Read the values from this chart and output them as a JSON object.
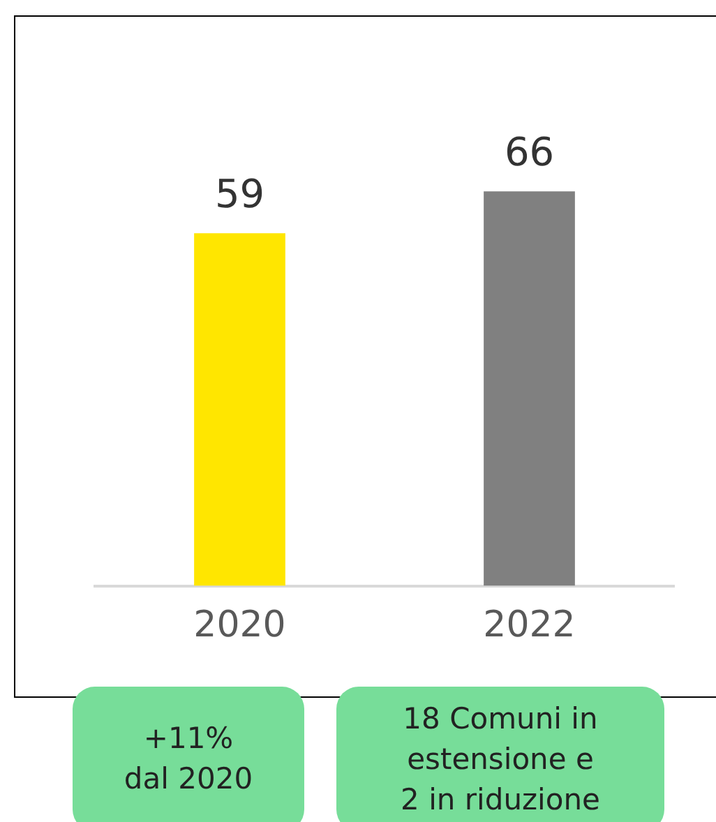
{
  "chart_data": {
    "type": "bar",
    "categories": [
      "2020",
      "2022"
    ],
    "values": [
      59,
      66
    ],
    "colors": [
      "#ffe600",
      "#808080"
    ],
    "data_labels": true,
    "legend": false,
    "grid": false,
    "annotations": [
      "+11%\ndal 2020",
      "18 Comuni in\nestensione e\n2 in riduzione"
    ]
  }
}
